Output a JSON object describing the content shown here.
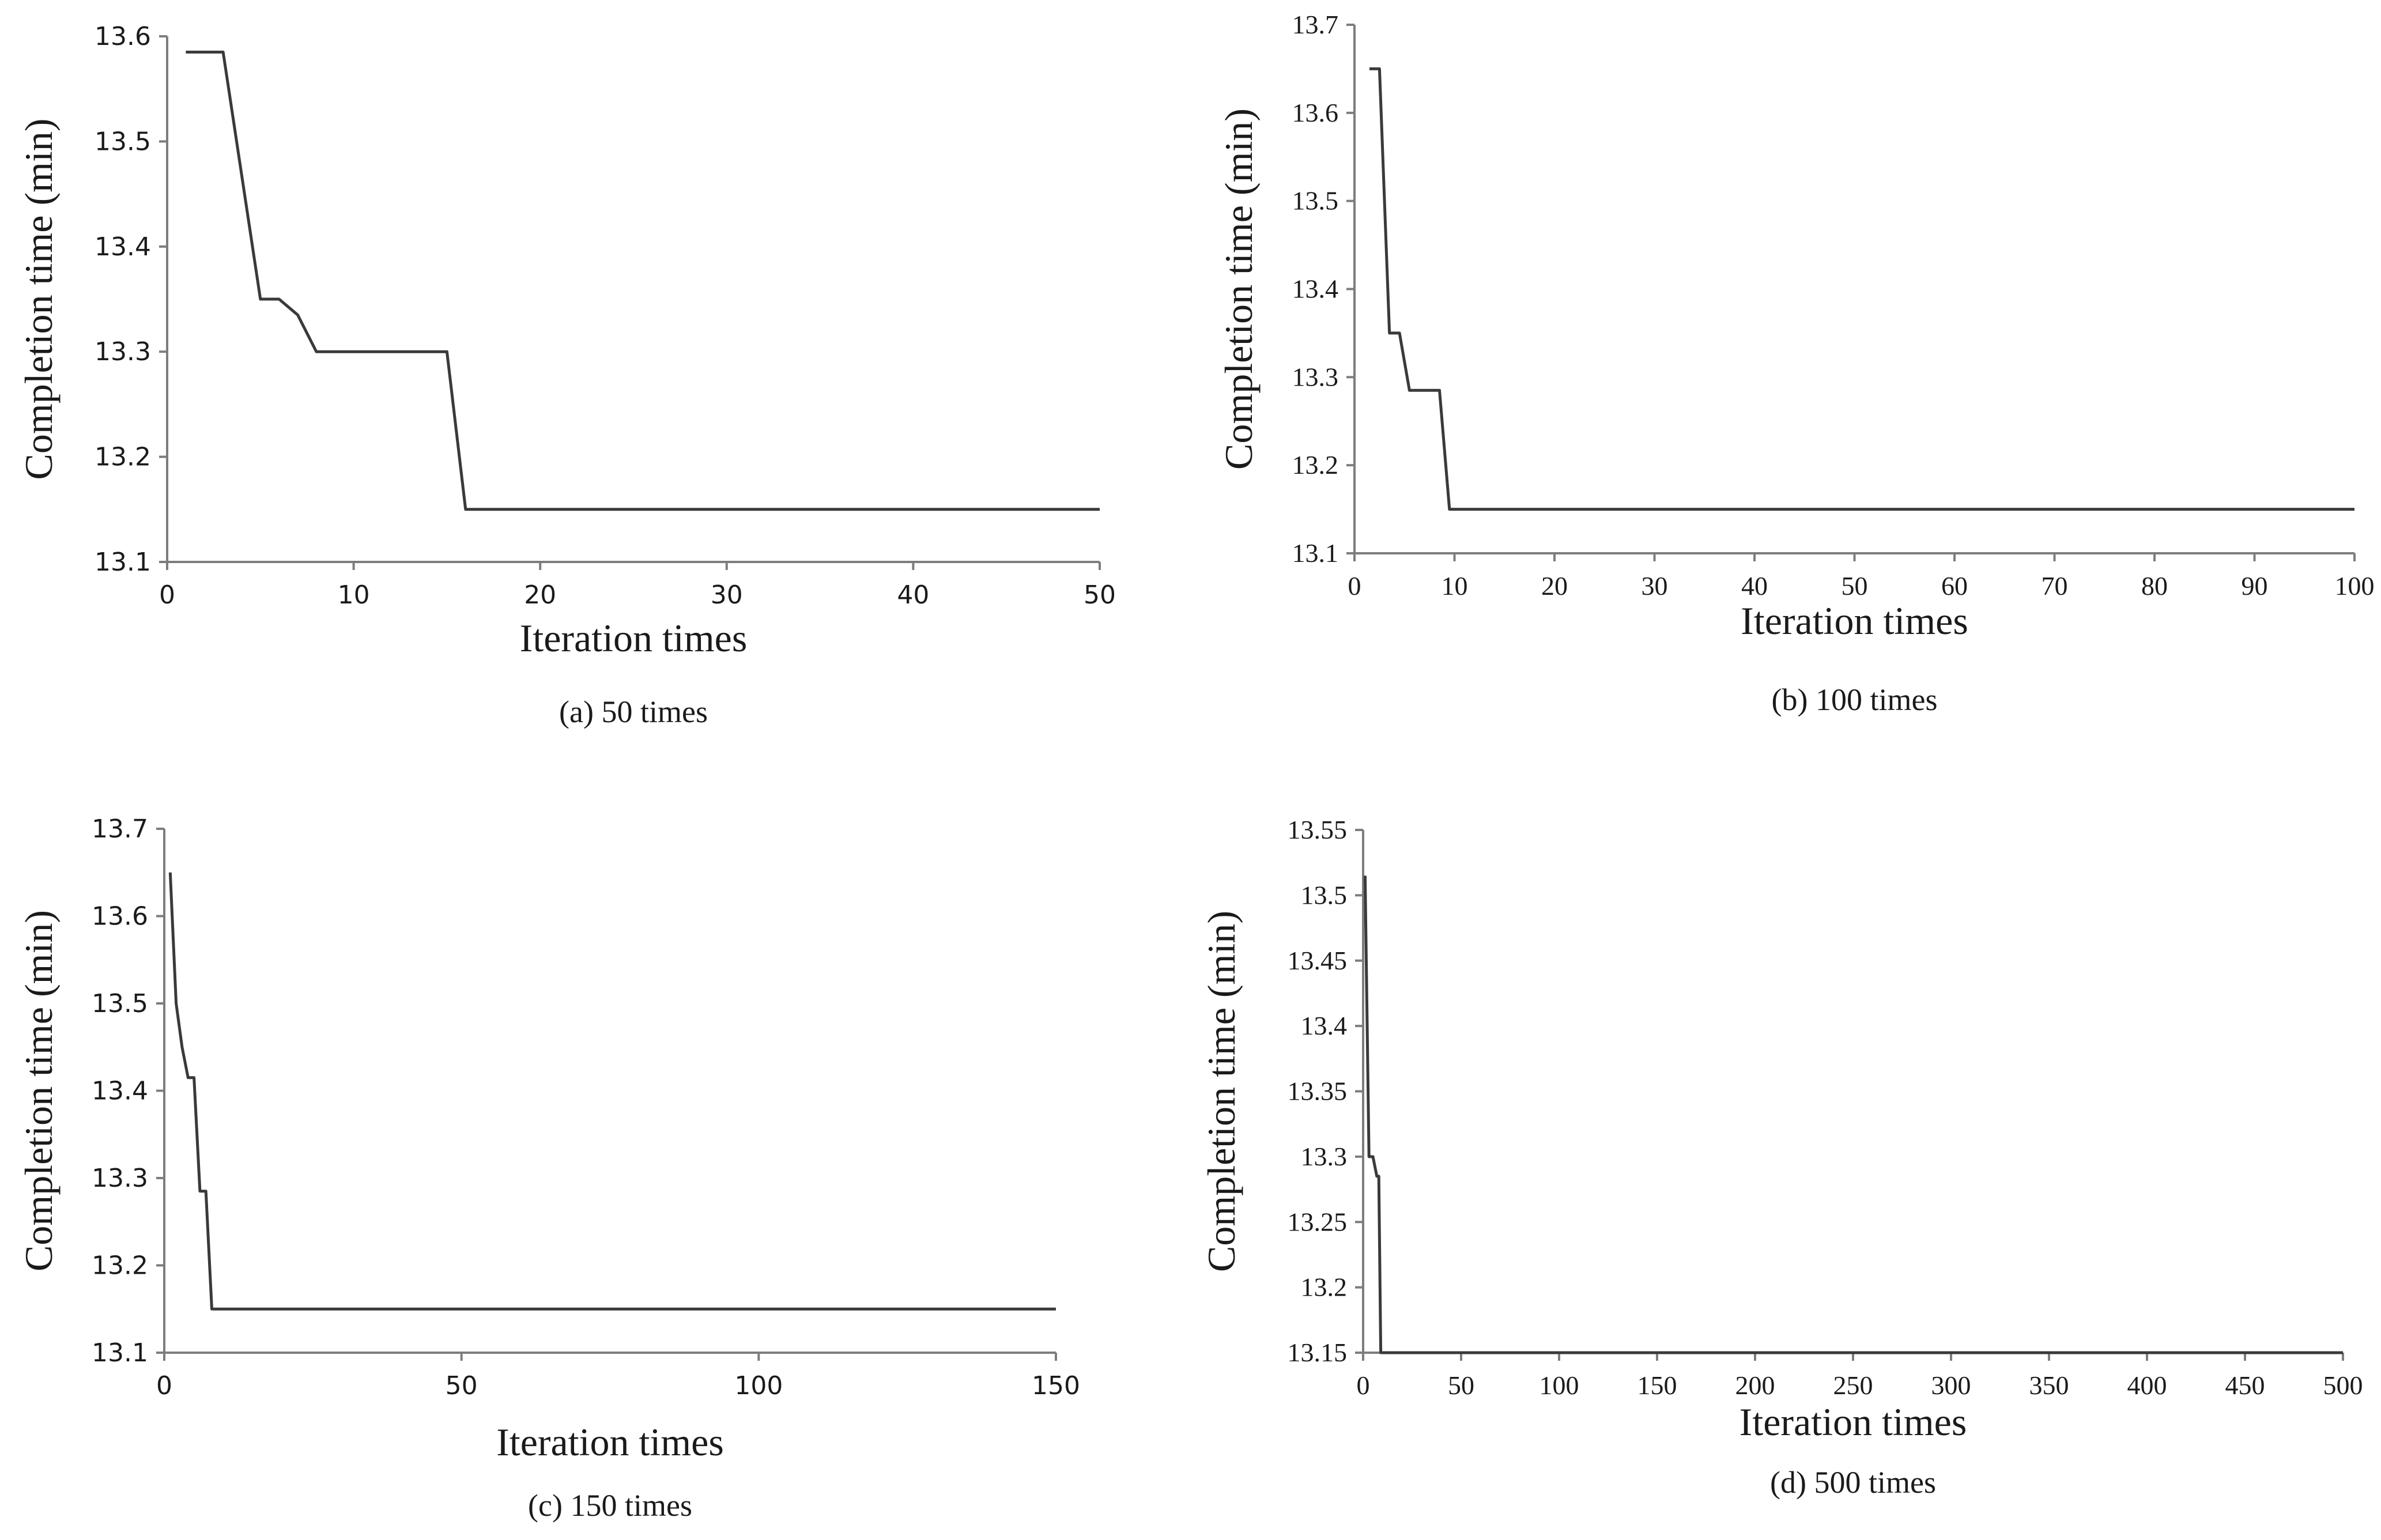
{
  "chart_data": [
    {
      "type": "line",
      "caption": "(a) 50 times",
      "xlabel": "Iteration times",
      "ylabel": "Completion time (min)",
      "xlim": [
        0,
        50
      ],
      "ylim": [
        13.1,
        13.6
      ],
      "xticks": [
        0,
        10,
        20,
        30,
        40,
        50
      ],
      "xtick_labels": [
        "0",
        "10",
        "20",
        "30",
        "40",
        "50"
      ],
      "yticks": [
        13.1,
        13.2,
        13.3,
        13.4,
        13.5,
        13.6
      ],
      "ytick_labels": [
        "13.1",
        "13.2",
        "13.3",
        "13.4",
        "13.5",
        "13.6"
      ],
      "series": [
        {
          "name": "Completion time",
          "x": [
            1,
            3,
            5,
            6,
            7,
            8,
            15,
            16,
            50
          ],
          "y": [
            13.585,
            13.585,
            13.35,
            13.35,
            13.335,
            13.3,
            13.3,
            13.15,
            13.15
          ]
        }
      ]
    },
    {
      "type": "line",
      "caption": "(b) 100 times",
      "xlabel": "Iteration times",
      "ylabel": "Completion time (min)",
      "xlim": [
        0,
        100
      ],
      "ylim": [
        13.1,
        13.7
      ],
      "xticks": [
        0,
        10,
        20,
        30,
        40,
        50,
        60,
        70,
        80,
        90,
        100
      ],
      "xtick_labels": [
        "0",
        "10",
        "20",
        "30",
        "40",
        "50",
        "60",
        "70",
        "80",
        "90",
        "100"
      ],
      "yticks": [
        13.1,
        13.2,
        13.3,
        13.4,
        13.5,
        13.6,
        13.7
      ],
      "ytick_labels": [
        "13.1",
        "13.2",
        "13.3",
        "13.4",
        "13.5",
        "13.6",
        "13.7"
      ],
      "series": [
        {
          "name": "Completion time",
          "x": [
            1.5,
            2.5,
            3.5,
            4.5,
            5.5,
            8.5,
            9.5,
            100
          ],
          "y": [
            13.65,
            13.65,
            13.35,
            13.35,
            13.285,
            13.285,
            13.15,
            13.15
          ]
        }
      ]
    },
    {
      "type": "line",
      "caption": "(c) 150 times",
      "xlabel": "Iteration times",
      "ylabel": "Completion time (min)",
      "xlim": [
        0,
        150
      ],
      "ylim": [
        13.1,
        13.7
      ],
      "xticks": [
        0,
        50,
        100,
        150
      ],
      "xtick_labels": [
        "0",
        "50",
        "100",
        "150"
      ],
      "yticks": [
        13.1,
        13.2,
        13.3,
        13.4,
        13.5,
        13.6,
        13.7
      ],
      "ytick_labels": [
        "13.1",
        "13.2",
        "13.3",
        "13.4",
        "13.5",
        "13.6",
        "13.7"
      ],
      "series": [
        {
          "name": "Completion time",
          "x": [
            1,
            2,
            3,
            4,
            5,
            6,
            7,
            8,
            150
          ],
          "y": [
            13.65,
            13.5,
            13.45,
            13.415,
            13.415,
            13.285,
            13.285,
            13.15,
            13.15
          ]
        }
      ]
    },
    {
      "type": "line",
      "caption": "(d) 500 times",
      "xlabel": "Iteration times",
      "ylabel": "Completion time (min)",
      "xlim": [
        0,
        500
      ],
      "ylim": [
        13.15,
        13.55
      ],
      "xticks": [
        0,
        50,
        100,
        150,
        200,
        250,
        300,
        350,
        400,
        450,
        500
      ],
      "xtick_labels": [
        "0",
        "50",
        "100",
        "150",
        "200",
        "250",
        "300",
        "350",
        "400",
        "450",
        "500"
      ],
      "yticks": [
        13.15,
        13.2,
        13.25,
        13.3,
        13.35,
        13.4,
        13.45,
        13.5,
        13.55
      ],
      "ytick_labels": [
        "13.15",
        "13.2",
        "13.25",
        "13.3",
        "13.35",
        "13.4",
        "13.45",
        "13.5",
        "13.55"
      ],
      "series": [
        {
          "name": "Completion time",
          "x": [
            1,
            3,
            5,
            7,
            8,
            9,
            500
          ],
          "y": [
            13.515,
            13.3,
            13.3,
            13.285,
            13.285,
            13.15,
            13.15
          ]
        }
      ]
    }
  ]
}
